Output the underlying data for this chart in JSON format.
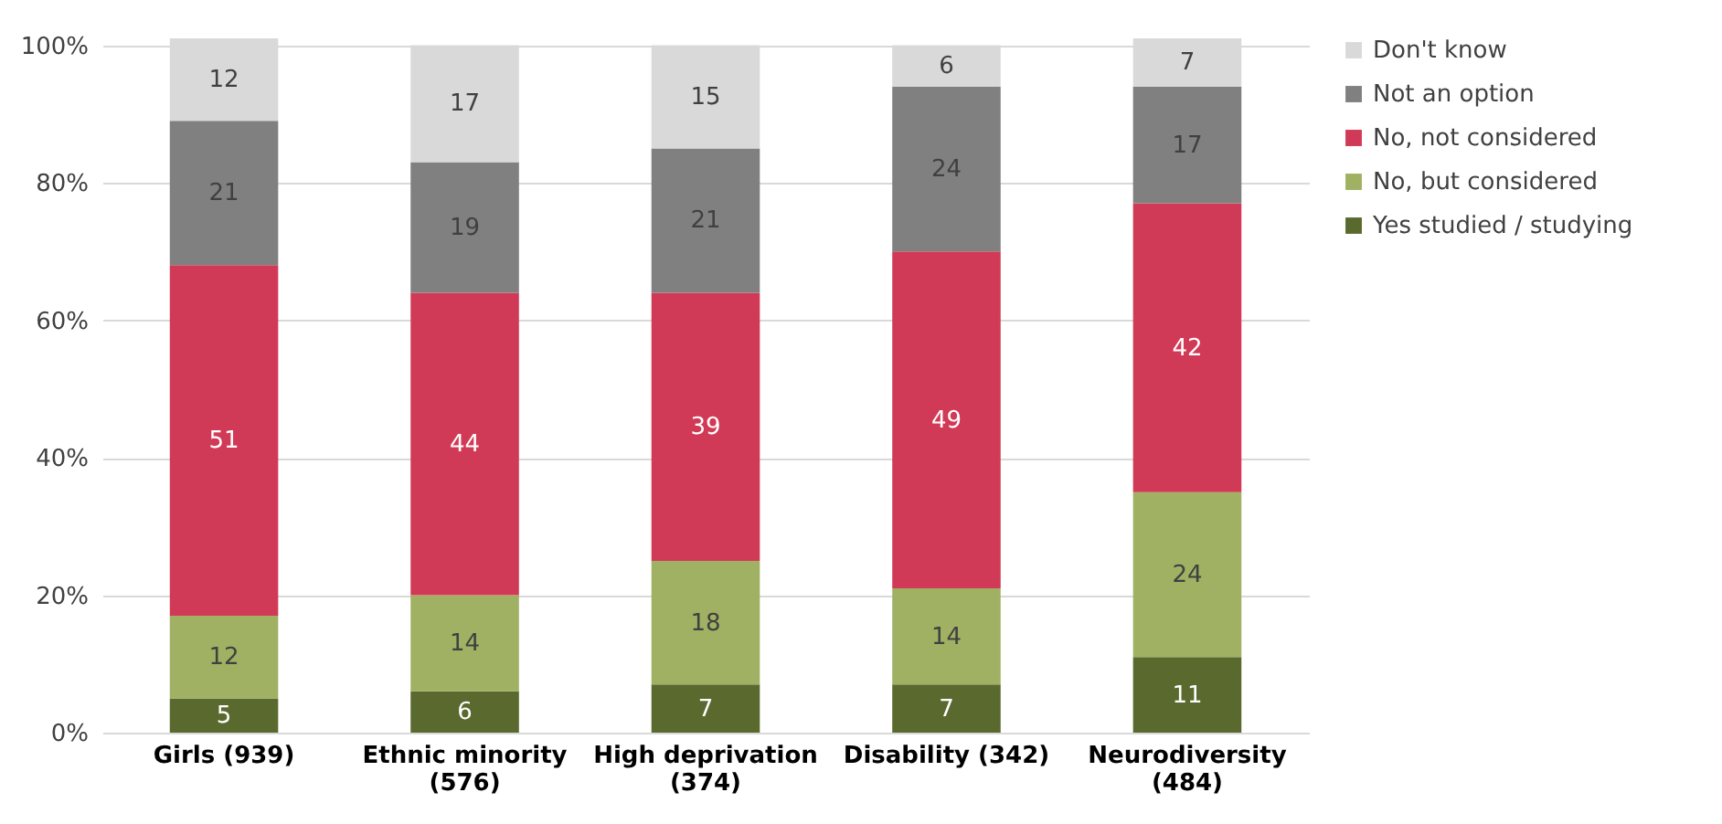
{
  "chart_data": {
    "type": "bar",
    "stacked": true,
    "data_labels": true,
    "legend": "right",
    "grid": "y",
    "categories": [
      "Girls (939)",
      "Ethnic minority (576)",
      "High deprivation (374)",
      "Disability (342)",
      "Neurodiversity (484)"
    ],
    "series": [
      {
        "name": "Yes studied / studying",
        "color": "#5a6a2e",
        "values": [
          5,
          6,
          7,
          7,
          11
        ]
      },
      {
        "name": "No, but considered",
        "color": "#a0b163",
        "values": [
          12,
          14,
          18,
          14,
          24
        ]
      },
      {
        "name": "No, not considered",
        "color": "#d13a56",
        "values": [
          51,
          44,
          39,
          49,
          42
        ]
      },
      {
        "name": "Not an option",
        "color": "#808080",
        "values": [
          21,
          19,
          21,
          24,
          17
        ]
      },
      {
        "name": "Don't know",
        "color": "#d9d9d9",
        "values": [
          12,
          17,
          15,
          6,
          7
        ]
      }
    ],
    "ylim": [
      0,
      101
    ],
    "yticks": [
      {
        "value": 0,
        "label": "0%"
      },
      {
        "value": 20,
        "label": "20%"
      },
      {
        "value": 40,
        "label": "40%"
      },
      {
        "value": 60,
        "label": "60%"
      },
      {
        "value": 80,
        "label": "80%"
      },
      {
        "value": 100,
        "label": "100%"
      }
    ]
  }
}
